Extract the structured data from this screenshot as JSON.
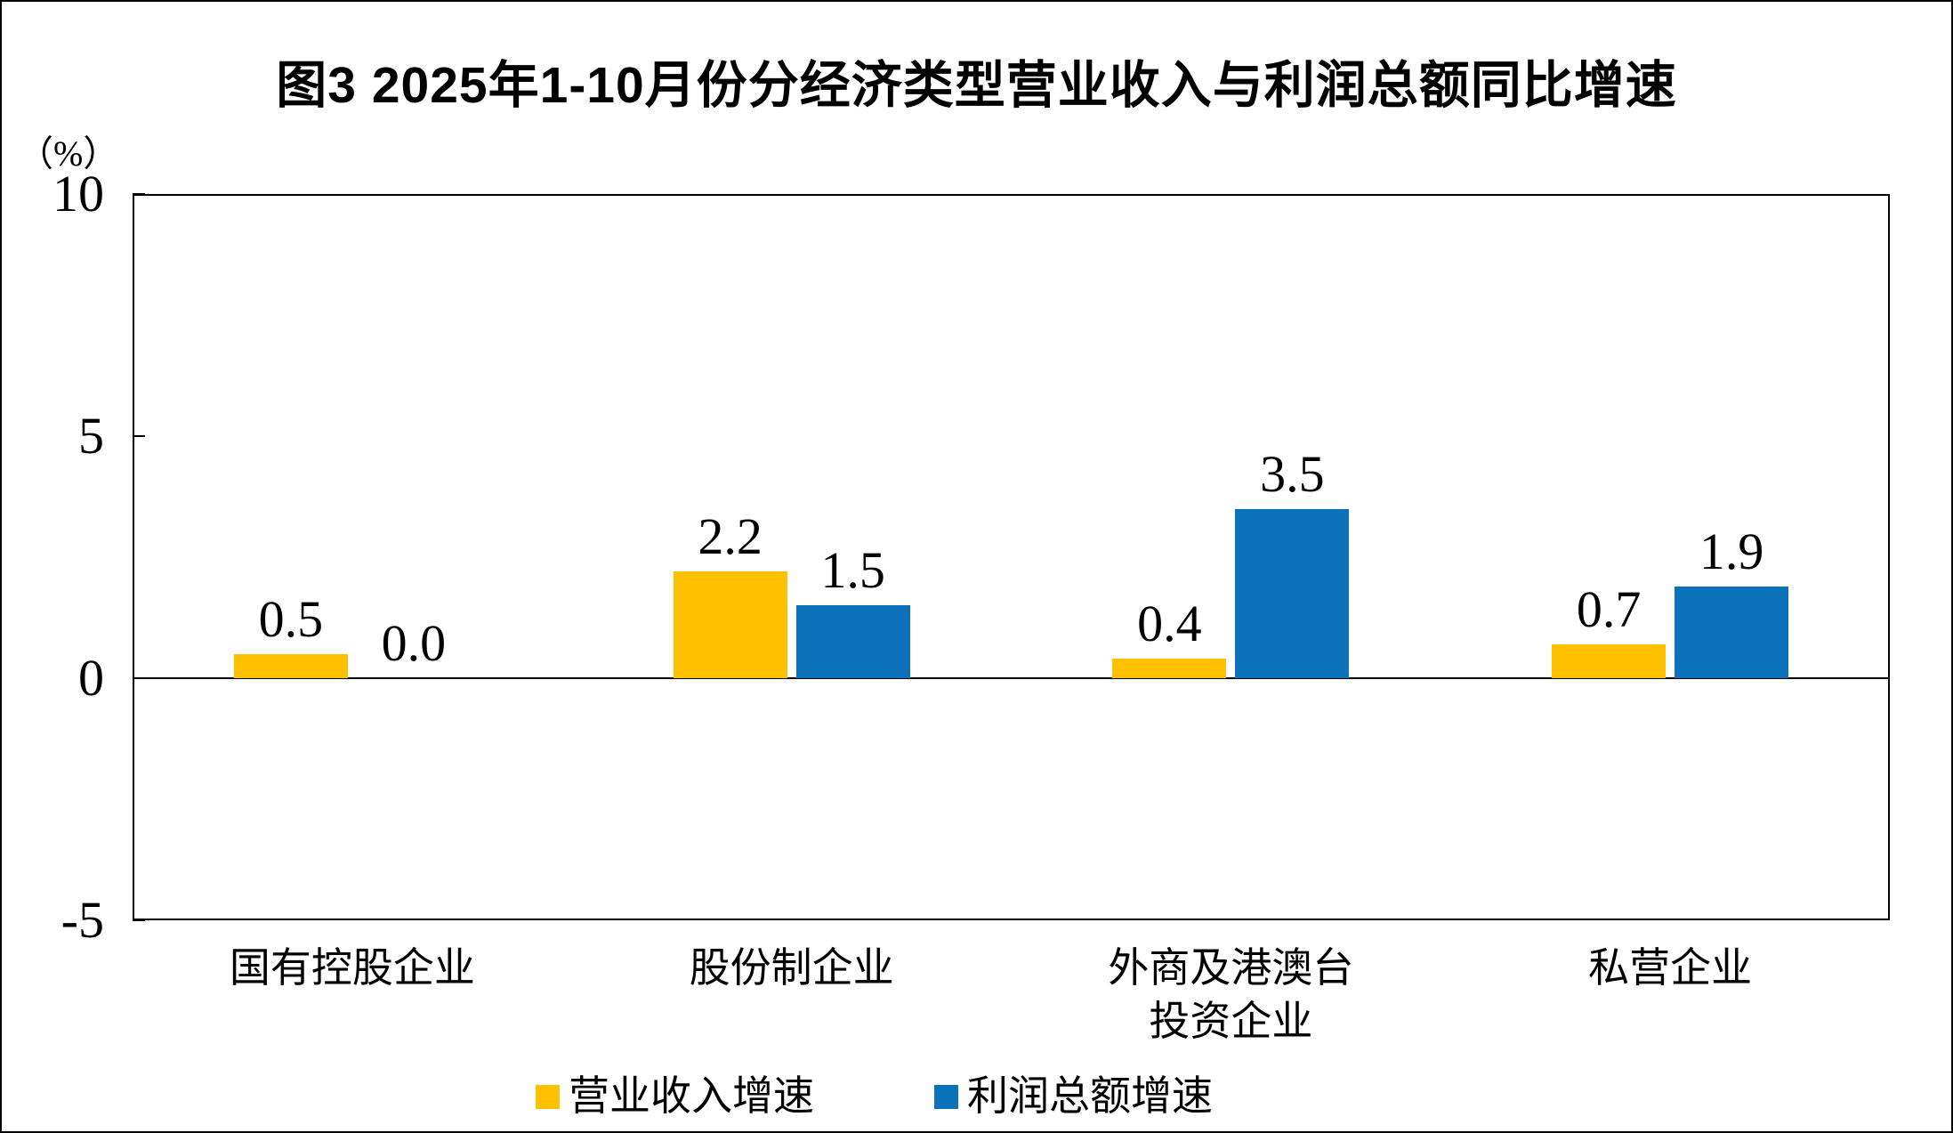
{
  "figure": {
    "background_color": "#FFFFFF",
    "border_color": "#000000",
    "text_color": "#000000"
  },
  "chart_data": {
    "type": "bar",
    "title": "图3 2025年1-10月份分经济类型营业收入与利润总额同比增速",
    "unit_label": "（%）",
    "categories": [
      {
        "label": "国有控股企业",
        "lines": [
          "国有控股企业"
        ]
      },
      {
        "label": "股份制企业",
        "lines": [
          "股份制企业"
        ]
      },
      {
        "label": "外商及港澳台投资企业",
        "lines": [
          "外商及港澳台",
          "投资企业"
        ]
      },
      {
        "label": "私营企业",
        "lines": [
          "私营企业"
        ]
      }
    ],
    "series": [
      {
        "name": "营业收入增速",
        "color": "#FFC000",
        "values": [
          0.5,
          2.2,
          0.4,
          0.7
        ],
        "labels": [
          "0.5",
          "2.2",
          "0.4",
          "0.7"
        ]
      },
      {
        "name": "利润总额增速",
        "color": "#0C72BA",
        "values": [
          0.0,
          1.5,
          3.5,
          1.9
        ],
        "labels": [
          "0.0",
          "1.5",
          "3.5",
          "1.9"
        ]
      }
    ],
    "ylim": [
      -5,
      10
    ],
    "yticks": [
      10,
      5,
      0,
      -5
    ],
    "grid": "none (zero baseline only)",
    "axis_color": "#000000",
    "legend_position": "bottom"
  }
}
